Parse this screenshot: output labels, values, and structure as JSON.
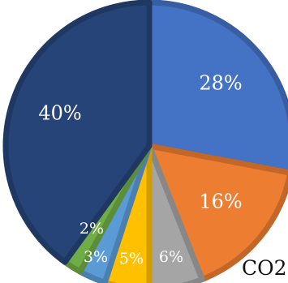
{
  "chart_data": {
    "type": "pie",
    "title": "",
    "caption": "CO2",
    "slices": [
      {
        "label": "28%",
        "value": 28,
        "color": "#4472c4"
      },
      {
        "label": "16%",
        "value": 16,
        "color": "#ed7d31"
      },
      {
        "label": "6%",
        "value": 6,
        "color": "#a5a5a5"
      },
      {
        "label": "5%",
        "value": 5,
        "color": "#ffc000"
      },
      {
        "label": "3%",
        "value": 3,
        "color": "#5b9bd5"
      },
      {
        "label": "2%",
        "value": 2,
        "color": "#70ad47"
      },
      {
        "label": "40%",
        "value": 40,
        "color": "#264478"
      }
    ]
  }
}
